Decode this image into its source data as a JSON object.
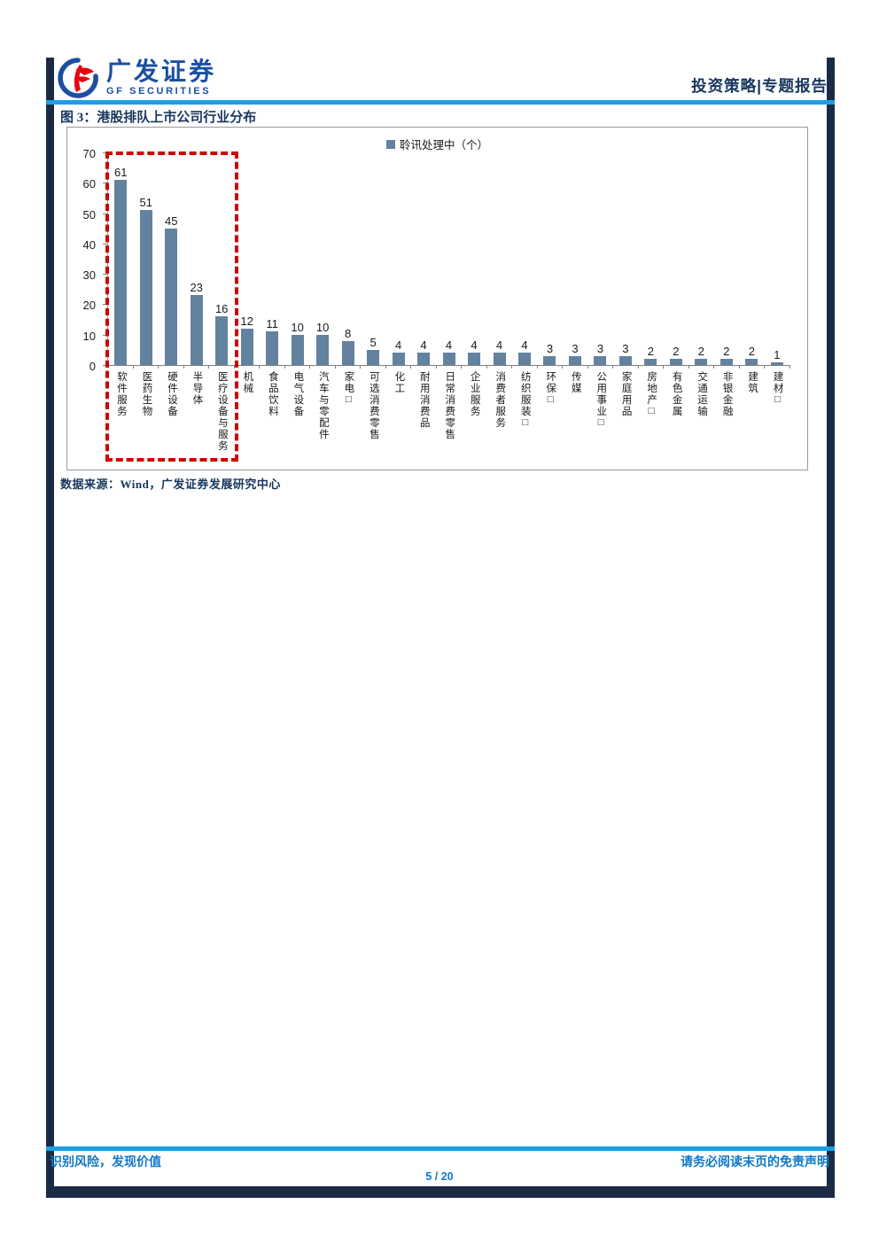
{
  "header": {
    "brand_cn": "广发证券",
    "brand_en": "GF SECURITIES",
    "category": "投资策略",
    "divider": "|",
    "report_type": "专题报告",
    "right_label": "投资策略|专题报告"
  },
  "figure": {
    "title": "图 3：港股排队上市公司行业分布",
    "legend": "聆讯处理中（个）",
    "source": "数据来源：Wind，广发证券发展研究中心"
  },
  "chart_data": {
    "type": "bar",
    "title": "港股排队上市公司行业分布",
    "legend_entries": [
      "聆讯处理中（个）"
    ],
    "legend_position": "top-center",
    "grid": false,
    "xlabel": "",
    "ylabel": "",
    "ylim": [
      0,
      70
    ],
    "yticks": [
      0,
      10,
      20,
      30,
      40,
      50,
      60,
      70
    ],
    "categories": [
      "软件服务",
      "医药生物",
      "硬件设备",
      "半导体",
      "医疗设备与服务",
      "机械",
      "食品饮料",
      "电气设备",
      "汽车与零配件",
      "家电□",
      "可选消费零售",
      "化工",
      "耐用消费品",
      "日常消费零售",
      "企业服务",
      "消费者服务",
      "纺织服装□",
      "环保□",
      "传媒",
      "公用事业□",
      "家庭用品",
      "房地产□",
      "有色金属",
      "交通运输",
      "非银金融",
      "建筑",
      "建材□"
    ],
    "values": [
      61,
      51,
      45,
      23,
      16,
      12,
      11,
      10,
      10,
      8,
      5,
      4,
      4,
      4,
      4,
      4,
      4,
      3,
      3,
      3,
      3,
      2,
      2,
      2,
      2,
      2,
      1
    ],
    "highlight_box": {
      "style": "dashed",
      "color": "#D00000",
      "categories_covered": [
        "软件服务",
        "医药生物",
        "硬件设备",
        "半导体",
        "医疗设备与服务"
      ]
    }
  },
  "footer": {
    "left": "识别风险，发现价值",
    "right": "请务必阅读末页的免责声明",
    "page": "5 / 20"
  },
  "colors": {
    "accent_blue_line": "#18A0E4",
    "footer_text_blue": "#0F78C8",
    "navy_text": "#17365D",
    "frame_navy": "#1B2A45",
    "brand_blue": "#1C4FA1",
    "brand_red": "#E60012",
    "bar_fill": "#63829F",
    "highlight_red": "#D00000"
  }
}
